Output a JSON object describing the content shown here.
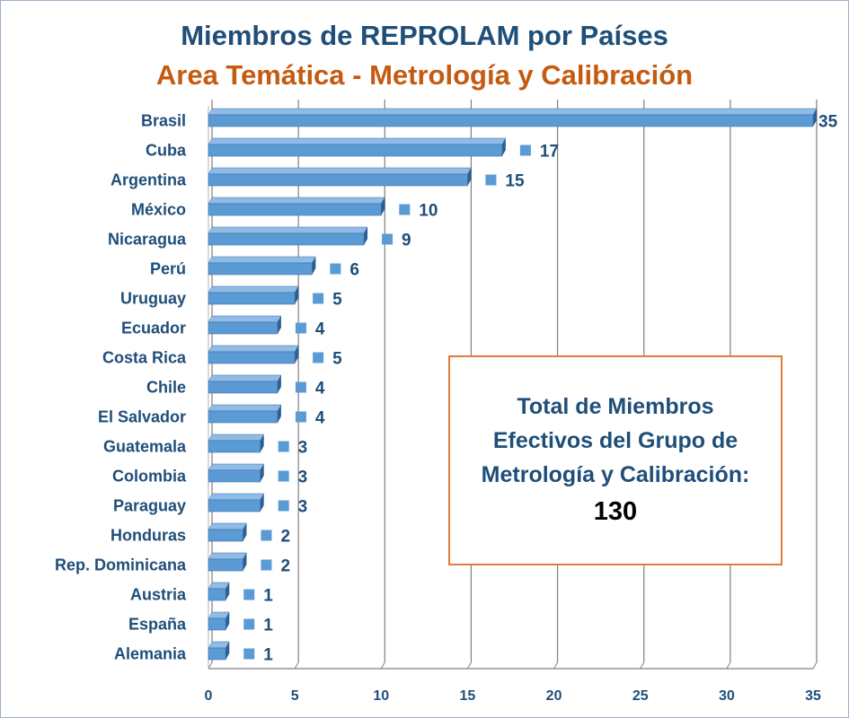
{
  "title": "Miembros de REPROLAM por Países",
  "subtitle": "Area Temática - Metrología y Calibración",
  "colors": {
    "title": "#1f4e79",
    "subtitle": "#c55a11",
    "bar": "#5b9bd5",
    "bar_top": "#8fbbe6",
    "bar_side": "#2e5f93",
    "box_border": "#e07b39"
  },
  "chart_data": {
    "type": "bar",
    "orientation": "horizontal",
    "categories": [
      "Brasil",
      "Cuba",
      "Argentina",
      "México",
      "Nicaragua",
      "Perú",
      "Uruguay",
      "Ecuador",
      "Costa Rica",
      "Chile",
      "El Salvador",
      "Guatemala",
      "Colombia",
      "Paraguay",
      "Honduras",
      "Rep. Dominicana",
      "Austria",
      "España",
      "Alemania"
    ],
    "values": [
      35,
      17,
      15,
      10,
      9,
      6,
      5,
      4,
      5,
      4,
      4,
      3,
      3,
      3,
      2,
      2,
      1,
      1,
      1
    ],
    "xlim": [
      0,
      35
    ],
    "xticks": [
      0,
      5,
      10,
      15,
      20,
      25,
      30,
      35
    ],
    "grid": true,
    "data_labels": true,
    "style": "3d"
  },
  "summary_box": {
    "text": "Total de Miembros Efectivos del Grupo de Metrología y Calibración:",
    "value": "130"
  }
}
